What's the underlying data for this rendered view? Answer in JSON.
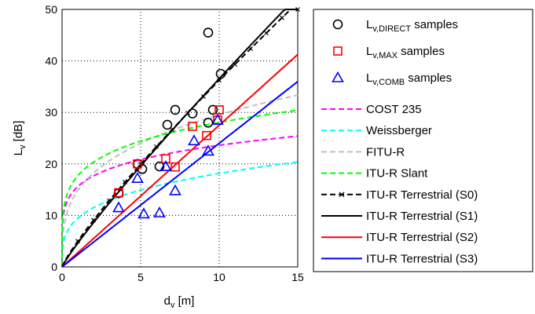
{
  "chart_data": {
    "type": "scatter",
    "xlabel": "d",
    "xlabel_sub": "v",
    "xlabel_unit": " [m]",
    "ylabel": "L",
    "ylabel_sub": "v",
    "ylabel_unit": " [dB]",
    "xlim": [
      0,
      15
    ],
    "ylim": [
      0,
      50
    ],
    "xticks": [
      0,
      5,
      10,
      15
    ],
    "yticks": [
      0,
      10,
      20,
      30,
      40,
      50
    ],
    "grid": true,
    "legend_position": "outside-right",
    "markers": [
      {
        "label_main": "L",
        "label_sub": "v,DIRECT",
        "label_rest": " samples",
        "marker": "circle",
        "color": "#000000",
        "points": [
          [
            3.6,
            14.3
          ],
          [
            4.8,
            20
          ],
          [
            5.1,
            19
          ],
          [
            6.2,
            19.5
          ],
          [
            6.7,
            27.6
          ],
          [
            7.2,
            30.5
          ],
          [
            8.3,
            29.8
          ],
          [
            9.3,
            28
          ],
          [
            9.6,
            30.5
          ],
          [
            9.3,
            45.5
          ],
          [
            10.1,
            37.5
          ]
        ]
      },
      {
        "label_main": "L",
        "label_sub": "v,MAX",
        "label_rest": " samples",
        "marker": "square",
        "color": "#ff0000",
        "points": [
          [
            3.6,
            14.4
          ],
          [
            4.8,
            20
          ],
          [
            6.6,
            21
          ],
          [
            7.2,
            19.4
          ],
          [
            8.3,
            27.3
          ],
          [
            9.2,
            25.5
          ],
          [
            9.9,
            28.5
          ],
          [
            10,
            30.5
          ]
        ]
      },
      {
        "label_main": "L",
        "label_sub": "v,COMB",
        "label_rest": " samples",
        "marker": "triangle",
        "color": "#0000ff",
        "points": [
          [
            3.6,
            11.5
          ],
          [
            4.8,
            17.2
          ],
          [
            5.2,
            10.3
          ],
          [
            6.2,
            10.5
          ],
          [
            6.6,
            19.5
          ],
          [
            7.2,
            14.8
          ],
          [
            8.4,
            24.5
          ],
          [
            9.3,
            22.5
          ],
          [
            9.9,
            28.5
          ]
        ]
      }
    ],
    "lines": [
      {
        "name": "COST 235",
        "color": "#ff00ff",
        "dash": true,
        "model": "cost235"
      },
      {
        "name": "Weissberger",
        "color": "#00ffff",
        "dash": true,
        "model": "weissberger"
      },
      {
        "name": "FITU-R",
        "color": "#c0c0c0",
        "dash": true,
        "model": "fitur"
      },
      {
        "name": "ITU-R Slant",
        "color": "#00ff00",
        "dash": true,
        "model": "slant"
      },
      {
        "name": "ITU-R Terrestrial (S0)",
        "color": "#000000",
        "dash": true,
        "x_marker": true,
        "model": "s0"
      },
      {
        "name": "ITU-R Terrestrial (S1)",
        "color": "#000000",
        "dash": false,
        "model": "s1"
      },
      {
        "name": "ITU-R Terrestrial (S2)",
        "color": "#ff0000",
        "dash": false,
        "model": "s2"
      },
      {
        "name": "ITU-R Terrestrial (S3)",
        "color": "#0000ff",
        "dash": false,
        "model": "s3"
      }
    ]
  }
}
